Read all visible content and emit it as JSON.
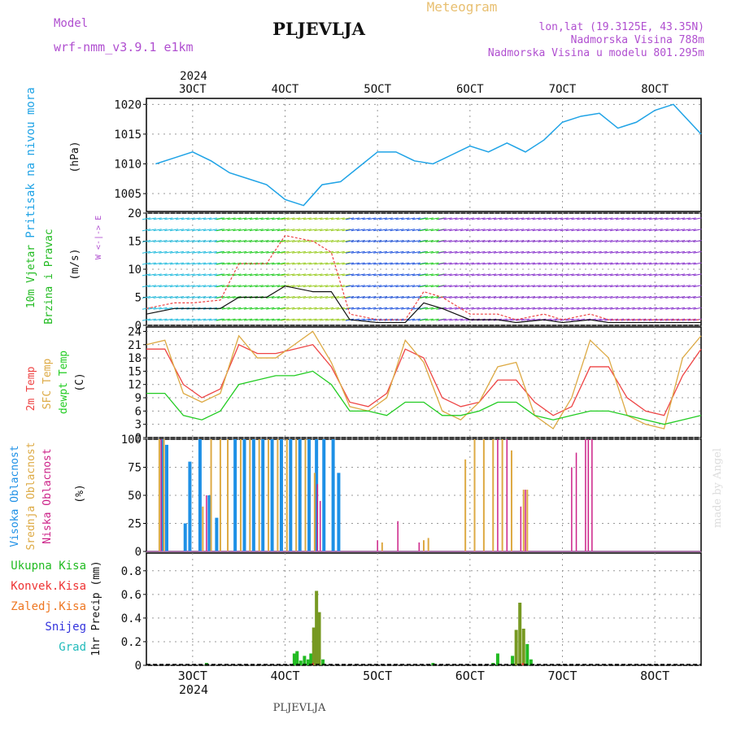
{
  "header": {
    "model_label": "Model",
    "model_name": "wrf-nmm_v3.9.1  e1km",
    "station": "PLJEVLJA",
    "product": "Meteogram",
    "coords": "lon,lat (19.3125E, 43.35N)",
    "altitude": "Nadmorska Visina 788m",
    "model_altitude": "Nadmorska Visina u modelu 801.295m"
  },
  "footer": {
    "station": "PLJEVLJA",
    "credit": "made by Angel"
  },
  "colors": {
    "pressure": "#1fa3e6",
    "wind_label": "#22bb22",
    "temp2m": "#ee4444",
    "sfc": "#ddaa44",
    "dewpt": "#22cc22",
    "high_cloud": "#1e90e6",
    "mid_cloud": "#ddaa44",
    "low_cloud": "#cc2288",
    "total_precip": "#22bb22",
    "conv_precip": "#ee3333",
    "frozen_precip": "#ee7722",
    "snow": "#3333dd",
    "hail": "#22bbbb",
    "purple_text": "#b04fd0"
  },
  "chart_data": [
    {
      "type": "line",
      "panel": "pressure",
      "ylabel": "Pritisak na nivou mora",
      "unit": "(hPa)",
      "ylim": [
        1002,
        1021
      ],
      "yticks": [
        1005,
        1010,
        1015,
        1020
      ],
      "x_axis_top": {
        "year": "2024",
        "ticks": [
          "3OCT",
          "4OCT",
          "5OCT",
          "6OCT",
          "7OCT",
          "8OCT"
        ]
      },
      "x_days": [
        2.6,
        2.8,
        3.0,
        3.2,
        3.4,
        3.6,
        3.8,
        4.0,
        4.2,
        4.4,
        4.6,
        4.8,
        5.0,
        5.2,
        5.4,
        5.6,
        5.8,
        6.0,
        6.2,
        6.4,
        6.6,
        6.8,
        7.0,
        7.2,
        7.4,
        7.6,
        7.8,
        8.0,
        8.2,
        8.5
      ],
      "values": [
        1010,
        1011,
        1012,
        1010.5,
        1008.5,
        1007.5,
        1006.5,
        1004,
        1003,
        1006.5,
        1007,
        1009.5,
        1012,
        1012,
        1010.5,
        1010,
        1011.5,
        1013,
        1012,
        1013.5,
        1012,
        1014,
        1017,
        1018,
        1018.5,
        1016,
        1017,
        1019,
        1020,
        1015
      ]
    },
    {
      "type": "line",
      "panel": "wind",
      "ylabel": "10m Vjetar Brzina i Pravac",
      "unit": "(m/s)",
      "direction_legend": "W <-|-> E",
      "ylim": [
        0,
        20
      ],
      "yticks": [
        0,
        5,
        10,
        15,
        20
      ],
      "series": [
        {
          "name": "gust",
          "x_days": [
            2.5,
            2.8,
            3.0,
            3.3,
            3.5,
            3.8,
            4.0,
            4.3,
            4.5,
            4.7,
            5.0,
            5.3,
            5.5,
            5.7,
            6.0,
            6.3,
            6.5,
            6.8,
            7.0,
            7.3,
            7.5,
            7.8,
            8.0,
            8.3,
            8.5
          ],
          "values": [
            3,
            4,
            4,
            4.5,
            11,
            11,
            16,
            15,
            13,
            2,
            1,
            1,
            6,
            5,
            2,
            2,
            1,
            2,
            1,
            2,
            1,
            1,
            1,
            1,
            1
          ]
        },
        {
          "name": "mean",
          "x_days": [
            2.5,
            2.8,
            3.0,
            3.3,
            3.5,
            3.8,
            4.0,
            4.3,
            4.5,
            4.7,
            5.0,
            5.3,
            5.5,
            5.7,
            6.0,
            6.3,
            6.5,
            6.8,
            7.0,
            7.3,
            7.5,
            7.8,
            8.0,
            8.3,
            8.5
          ],
          "values": [
            2,
            3,
            3,
            3,
            5,
            5,
            7,
            6,
            6,
            1,
            0.5,
            0.5,
            4,
            3,
            1,
            1,
            0.5,
            1,
            0.5,
            1,
            0.5,
            0.5,
            0.5,
            0.5,
            0.5
          ]
        }
      ]
    },
    {
      "type": "line",
      "panel": "temperature",
      "ylabels": [
        "2m Temp",
        "SFC Temp",
        "dewpt Temp"
      ],
      "unit": "(C)",
      "ylim": [
        0,
        25
      ],
      "yticks": [
        0,
        3,
        6,
        9,
        12,
        15,
        18,
        21,
        24
      ],
      "x_days": [
        2.5,
        2.7,
        2.9,
        3.1,
        3.3,
        3.5,
        3.7,
        3.9,
        4.1,
        4.3,
        4.5,
        4.7,
        4.9,
        5.1,
        5.3,
        5.5,
        5.7,
        5.9,
        6.1,
        6.3,
        6.5,
        6.7,
        6.9,
        7.1,
        7.3,
        7.5,
        7.7,
        7.9,
        8.1,
        8.3,
        8.5
      ],
      "series": [
        {
          "name": "2m Temp",
          "values": [
            20,
            20,
            12,
            9,
            11,
            21,
            19,
            19,
            20,
            21,
            16,
            8,
            7,
            10,
            20,
            18,
            9,
            7,
            8,
            13,
            13,
            8,
            5,
            7,
            16,
            16,
            9,
            6,
            5,
            14,
            20
          ]
        },
        {
          "name": "SFC Temp",
          "values": [
            21,
            22,
            10,
            8,
            10,
            23,
            18,
            18,
            21,
            24,
            17,
            7,
            6,
            9,
            22,
            17,
            6,
            4,
            8,
            16,
            17,
            5,
            2,
            9,
            22,
            18,
            5,
            3,
            2,
            18,
            23
          ]
        },
        {
          "name": "dewpt Temp",
          "values": [
            10,
            10,
            5,
            4,
            6,
            12,
            13,
            14,
            14,
            15,
            12,
            6,
            6,
            5,
            8,
            8,
            5,
            5,
            6,
            8,
            8,
            5,
            4,
            5,
            6,
            6,
            5,
            4,
            3,
            4,
            5
          ]
        }
      ]
    },
    {
      "type": "bar",
      "panel": "cloud",
      "ylabels": [
        "Visoka Oblacnost",
        "Srednja Oblacnost",
        "Niska Oblacnost"
      ],
      "unit": "(%)",
      "ylim": [
        0,
        100
      ],
      "yticks": [
        0,
        25,
        50,
        75,
        100
      ],
      "series": [
        {
          "name": "Visoka Oblacnost",
          "x_days": [
            2.67,
            2.72,
            2.92,
            2.97,
            3.08,
            3.18,
            3.26,
            3.46,
            3.56,
            3.66,
            3.76,
            3.86,
            3.96,
            4.06,
            4.16,
            4.26,
            4.34,
            4.42,
            4.52,
            4.58
          ],
          "values": [
            100,
            95,
            25,
            80,
            100,
            50,
            30,
            100,
            100,
            100,
            100,
            100,
            100,
            100,
            100,
            100,
            100,
            100,
            100,
            70
          ]
        },
        {
          "name": "Srednja Oblacnost",
          "x_days": [
            2.64,
            2.69,
            3.11,
            3.2,
            3.3,
            3.38,
            3.52,
            3.62,
            3.72,
            3.82,
            3.92,
            4.02,
            4.12,
            4.22,
            4.32,
            5.05,
            5.5,
            5.55,
            5.95,
            6.05,
            6.15,
            6.25,
            6.35,
            6.45,
            6.58,
            6.62
          ],
          "values": [
            100,
            100,
            40,
            100,
            100,
            100,
            100,
            100,
            100,
            100,
            100,
            100,
            100,
            100,
            70,
            8,
            10,
            12,
            82,
            100,
            100,
            100,
            100,
            90,
            55,
            55
          ]
        },
        {
          "name": "Niska Oblacnost",
          "x_days": [
            2.66,
            3.15,
            4.35,
            4.38,
            5.0,
            5.22,
            5.45,
            6.3,
            6.4,
            6.55,
            6.6,
            7.1,
            7.15,
            7.25,
            7.28,
            7.32
          ],
          "values": [
            100,
            50,
            60,
            45,
            10,
            27,
            8,
            100,
            100,
            40,
            55,
            75,
            88,
            100,
            100,
            100
          ]
        }
      ]
    },
    {
      "type": "bar",
      "panel": "precip",
      "ylabels": [
        "Ukupna Kisa",
        "Konvek.Kisa",
        "Zaledj.Kisa",
        "Snijeg",
        "Grad"
      ],
      "unit": "1hr Precip (mm)",
      "ylim": [
        0,
        0.95
      ],
      "yticks": [
        0,
        0.2,
        0.4,
        0.6,
        0.8
      ],
      "x_axis_bottom": {
        "year": "2024",
        "ticks": [
          "3OCT",
          "4OCT",
          "5OCT",
          "6OCT",
          "7OCT",
          "8OCT"
        ]
      },
      "series": [
        {
          "name": "Ukupna Kisa",
          "x_days": [
            3.15,
            4.1,
            4.13,
            4.17,
            4.21,
            4.25,
            4.28,
            4.31,
            4.34,
            4.37,
            4.41,
            5.6,
            6.25,
            6.3,
            6.46,
            6.5,
            6.54,
            6.58,
            6.62,
            6.66
          ],
          "values": [
            0.02,
            0.1,
            0.12,
            0.04,
            0.08,
            0.05,
            0.1,
            0.32,
            0.63,
            0.45,
            0.05,
            0.02,
            0.02,
            0.1,
            0.08,
            0.3,
            0.53,
            0.31,
            0.18,
            0.05
          ]
        },
        {
          "name": "Konvek.Kisa",
          "x_days": [
            4.31,
            6.58
          ],
          "values": [
            0.02,
            0.02
          ]
        }
      ]
    }
  ]
}
